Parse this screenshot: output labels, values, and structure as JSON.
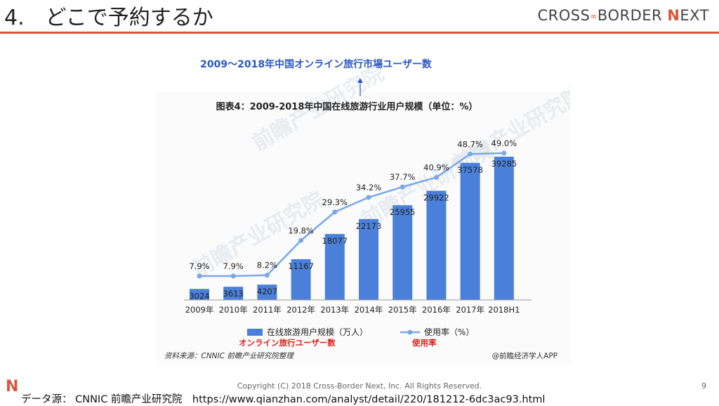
{
  "header": {
    "title": "4.　どこで予約するか",
    "brand_left": "CROSS",
    "brand_dot": "∞",
    "brand_mid": "BORDER ",
    "brand_n": "N",
    "brand_right": "EXT"
  },
  "chart_data": {
    "type": "bar",
    "jp_title": "2009〜2018年中国オンライン旅行市場ユーザー数",
    "title": "图表4：2009-2018年中国在线旅游行业用户规模（单位：%）",
    "categories": [
      "2009年",
      "2010年",
      "2011年",
      "2012年",
      "2013年",
      "2014年",
      "2015年",
      "2016年",
      "2017年",
      "2018H1"
    ],
    "series": [
      {
        "name": "在线旅游用户规模（万人）",
        "type": "bar",
        "values": [
          3024,
          3613,
          4207,
          11167,
          18077,
          22173,
          25955,
          29922,
          37578,
          39285
        ],
        "color": "#4a80d9"
      },
      {
        "name": "使用率（%）",
        "type": "line",
        "values": [
          7.9,
          7.9,
          8.2,
          19.8,
          29.3,
          34.2,
          37.7,
          40.9,
          48.7,
          49.0
        ],
        "labels": [
          "7.9%",
          "7.9%",
          "8.2%",
          "19.8%",
          "29.3%",
          "34.2%",
          "37.7%",
          "40.9%",
          "48.7%",
          "49.0%"
        ],
        "color": "#7aa7e8"
      }
    ],
    "legend_jp": [
      "オンライン旅行ユーザー数",
      "使用率"
    ],
    "source_note": "资料来源：CNNIC 前瞻产业研究院整理",
    "credit": "@前瞻经济学人APP",
    "watermark": "前瞻产业研究院"
  },
  "footer": {
    "logo": "N",
    "copyright": "Copyright (C) 2018 Cross-Border Next, Inc. All Rights Reserved.",
    "page": "9",
    "source": "データ源： CNNIC 前瞻产业研究院　https://www.qianzhan.com/analyst/detail/220/181212-6dc3ac93.html"
  }
}
